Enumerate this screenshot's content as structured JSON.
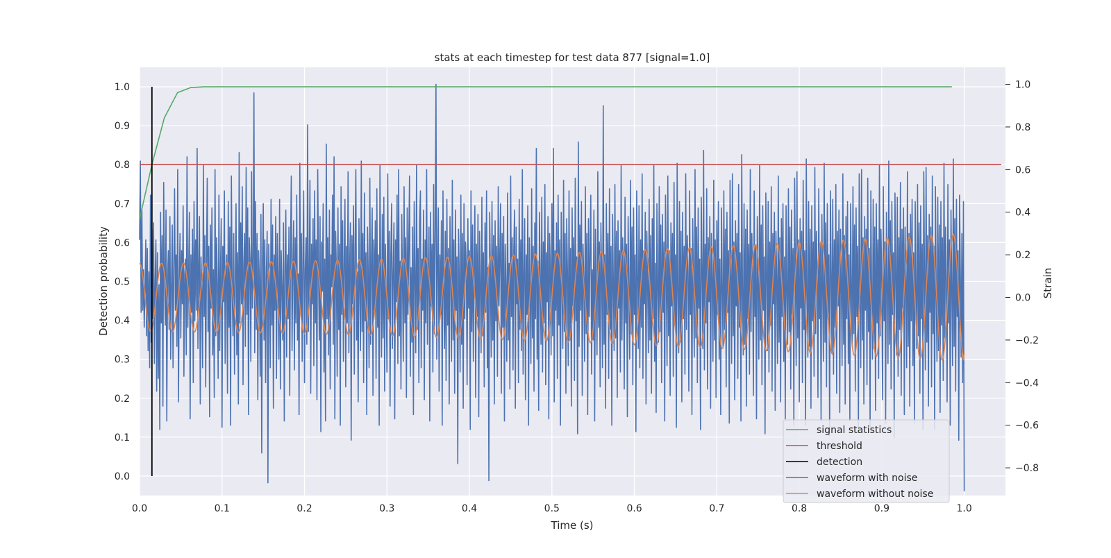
{
  "chart_data": {
    "type": "line",
    "title": "stats at each timestep for test data 877 [signal=1.0]",
    "xlabel": "Time (s)",
    "ylabel": "Detection probability",
    "y2label": "Strain",
    "xlim": [
      0.0,
      1.05
    ],
    "ylim": [
      -0.05,
      1.05
    ],
    "y2lim": [
      -0.93,
      1.08
    ],
    "xticks": [
      "0.0",
      "0.1",
      "0.2",
      "0.3",
      "0.4",
      "0.5",
      "0.6",
      "0.7",
      "0.8",
      "0.9",
      "1.0"
    ],
    "yticks": [
      "0.0",
      "0.1",
      "0.2",
      "0.3",
      "0.4",
      "0.5",
      "0.6",
      "0.7",
      "0.8",
      "0.9",
      "1.0"
    ],
    "y2ticks": [
      "−0.8",
      "−0.6",
      "−0.4",
      "−0.2",
      "0.0",
      "0.2",
      "0.4",
      "0.6",
      "0.8",
      "1.0"
    ],
    "grid": true,
    "legend_position": "lower-right",
    "legend": [
      "signal statistics",
      "threshold",
      "detection",
      "waveform with noise",
      "waveform without noise"
    ],
    "series": [
      {
        "name": "signal statistics",
        "axis": "left",
        "color": "#55a868",
        "x": [
          0.0,
          0.015,
          0.03,
          0.046,
          0.062,
          0.078,
          0.985
        ],
        "y": [
          0.66,
          0.8,
          0.92,
          0.985,
          0.998,
          1.0,
          1.0
        ]
      },
      {
        "name": "threshold",
        "axis": "left",
        "color": "#c44e52",
        "x": [
          0.0,
          1.045
        ],
        "y": [
          0.8,
          0.8
        ]
      },
      {
        "name": "detection",
        "axis": "left",
        "color": "#000000",
        "x": [
          0.015,
          0.015
        ],
        "y": [
          0.0,
          1.0
        ]
      },
      {
        "name": "waveform with noise",
        "axis": "right",
        "color": "#4c72b0",
        "x_start": 0.0,
        "x_end": 1.0,
        "y": [
          0.27,
          0.64,
          -0.07,
          0.41,
          -0.06,
          0.13,
          -0.14,
          0.03,
          0.27,
          -0.18,
          0.23,
          -0.25,
          0.12,
          -0.33,
          0.48,
          -0.21,
          0.32,
          -0.1,
          0.35,
          -0.31,
          0.08,
          0.27,
          -0.44,
          0.21,
          -0.38,
          0.06,
          -0.62,
          0.4,
          -0.12,
          0.29,
          -0.51,
          0.54,
          0.12,
          -0.13,
          0.41,
          -0.58,
          0.1,
          0.22,
          -0.15,
          0.38,
          -0.29,
          0.05,
          0.34,
          -0.33,
          0.13,
          0.51,
          -0.06,
          0.2,
          -0.23,
          0.6,
          -0.49,
          0.05,
          0.3,
          -0.19,
          0.22,
          -0.03,
          0.43,
          -0.37,
          0.11,
          0.18,
          -0.27,
          0.66,
          -0.14,
          0.09,
          0.4,
          -0.57,
          0.2,
          -0.07,
          0.32,
          -0.4,
          0.45,
          -0.11,
          0.27,
          -0.06,
          0.7,
          -0.24,
          0.14,
          0.38,
          -0.5,
          0.19,
          0.02,
          -0.33,
          0.62,
          -0.09,
          0.29,
          -0.42,
          0.18,
          0.56,
          -0.16,
          0.24,
          -0.56,
          0.34,
          -0.05,
          0.42,
          -0.27,
          0.13,
          -0.47,
          0.6,
          -0.18,
          0.28,
          0.06,
          -0.38,
          0.48,
          -0.25,
          0.12,
          0.37,
          -0.61,
          0.24,
          -0.02,
          0.5,
          -0.31,
          0.1,
          0.2,
          -0.45,
          0.45,
          -0.14,
          0.33,
          -0.6,
          0.57,
          0.05,
          -0.18,
          0.3,
          -0.36,
          0.08,
          0.44,
          -0.27,
          0.21,
          -0.5,
          0.68,
          -0.12,
          0.35,
          -0.03,
          0.52,
          -0.41,
          0.16,
          0.3,
          -0.23,
          0.61,
          -0.08,
          0.42,
          -0.55,
          0.28,
          0.17,
          -0.3,
          0.59,
          -0.05,
          0.12,
          0.96,
          -0.26,
          0.45,
          -0.15,
          0.3,
          -0.48,
          0.22,
          0.09,
          -0.37,
          0.39,
          -0.73,
          0.18,
          0.44,
          -0.2,
          0.27,
          -0.4,
          0.12,
          0.31,
          -0.87,
          0.25,
          0.05,
          -0.33,
          0.46,
          -0.13,
          0.34,
          -0.52,
          0.2,
          -0.06,
          0.38,
          -0.38,
          0.3,
          0.1,
          -0.29,
          0.46,
          -0.43,
          0.22,
          0.05,
          -0.2,
          0.35,
          -0.58,
          0.14,
          0.41,
          -0.28,
          0.2,
          -0.1,
          0.33,
          -0.46,
          0.22,
          0.57,
          -0.25,
          0.13,
          0.36,
          -0.34,
          0.28,
          -0.12,
          0.48,
          -0.2,
          0.11,
          -0.55,
          0.63,
          -0.08,
          0.3,
          -0.3,
          0.2,
          0.5,
          -0.4,
          0.14,
          0.28,
          -0.22,
          0.81,
          -0.16,
          0.09,
          0.55,
          -0.45,
          0.25,
          -0.03,
          0.37,
          -0.32,
          0.5,
          -0.12,
          0.27,
          -0.48,
          0.6,
          0.13,
          -0.2,
          0.38,
          -0.63,
          0.26,
          0.03,
          0.44,
          -0.35,
          0.18,
          -0.58,
          0.72,
          -0.1,
          0.28,
          -0.27,
          0.41,
          -0.43,
          0.2,
          0.05,
          0.48,
          -0.22,
          0.66,
          -0.57,
          0.31,
          0.12,
          -0.37,
          0.42,
          -0.15,
          0.25,
          -0.6,
          0.52,
          -0.08,
          0.36,
          -0.3,
          0.18,
          0.46,
          -0.42,
          0.24,
          -0.12,
          0.59,
          -0.26,
          0.15,
          0.35,
          -0.67,
          0.29,
          -0.03,
          0.43,
          -0.36,
          0.22,
          0.6,
          -0.2,
          0.12,
          -0.49,
          0.37,
          0.05,
          -0.25,
          0.64,
          -0.16,
          0.3,
          -0.4,
          0.49,
          -0.11,
          0.21,
          -0.55,
          0.33,
          0.1,
          -0.33,
          0.56,
          -0.22,
          0.16,
          0.42,
          -0.46,
          0.27,
          -0.06,
          0.36,
          -0.38,
          0.51,
          -0.14,
          0.2,
          -0.6,
          0.62,
          0.08,
          -0.28,
          0.39,
          -0.19,
          0.47,
          -0.44,
          0.25,
          0.02,
          -0.35,
          0.58,
          -0.1,
          0.31,
          -0.51,
          0.2,
          0.44,
          -0.24,
          0.12,
          0.35,
          -0.57,
          0.27,
          -0.02,
          0.48,
          -0.31,
          0.6,
          -0.18,
          0.17,
          -0.43,
          0.39,
          0.06,
          -0.3,
          0.52,
          -0.12,
          0.28,
          -0.47,
          0.42,
          -0.08,
          0.24,
          0.57,
          -0.37,
          0.14,
          -0.21,
          0.33,
          -0.55,
          0.45,
          0.1,
          -0.26,
          0.62,
          -0.15,
          0.23,
          -0.4,
          0.36,
          0.5,
          -0.33,
          0.18,
          -0.06,
          0.41,
          -0.48,
          0.27,
          -0.12,
          0.6,
          -0.22,
          0.09,
          0.33,
          -0.58,
          0.4,
          -0.04,
          0.25,
          -0.35,
          0.53,
          -0.17,
          0.3,
          1.0,
          -0.29,
          0.16,
          0.42,
          -0.44,
          0.2,
          -0.08,
          0.36,
          -0.6,
          0.5,
          0.03,
          -0.24,
          0.31,
          -0.39,
          0.46,
          -0.13,
          0.23,
          -0.5,
          0.38,
          0.12,
          -0.3,
          0.55,
          -0.2,
          0.27,
          -0.45,
          0.41,
          -0.06,
          0.19,
          -0.78,
          0.32,
          0.08,
          -0.35,
          0.48,
          -0.22,
          0.3,
          -0.52,
          0.44,
          -0.1,
          0.26,
          0.15,
          -0.41,
          0.37,
          -0.05,
          0.22,
          -0.62,
          0.5,
          -0.16,
          0.34,
          -0.3,
          0.18,
          0.43,
          -0.47,
          0.25,
          -0.09,
          0.39,
          -0.56,
          0.31,
          0.07,
          -0.26,
          0.47,
          -0.18,
          0.21,
          -0.42,
          0.35,
          -0.07,
          0.5,
          -0.33,
          0.14,
          -0.86,
          0.4,
          0.1,
          -0.28,
          0.45,
          -0.2,
          0.29,
          -0.5,
          0.36,
          -0.11,
          0.24,
          -0.37,
          0.52,
          -0.04,
          0.18,
          0.44,
          -0.45,
          0.3,
          -0.14,
          0.38,
          -0.58,
          0.25,
          0.05,
          -0.3,
          0.49,
          -0.2,
          0.16,
          -0.43,
          0.57,
          -0.09,
          0.28,
          -0.34,
          0.22,
          0.41,
          -0.52,
          0.33,
          -0.03,
          0.18,
          -0.4,
          0.46,
          -0.15,
          0.27,
          -0.25,
          0.6,
          -0.36,
          0.12,
          0.37,
          -0.48,
          0.2,
          -0.08,
          0.43,
          -0.6,
          0.28,
          0.05,
          -0.31,
          0.51,
          -0.19,
          0.24,
          -0.44,
          0.35,
          -0.1,
          0.7,
          -0.29,
          0.17,
          -0.53,
          0.4,
          0.09,
          -0.22,
          0.47,
          -0.35,
          0.26,
          -0.12,
          0.53,
          -0.41,
          0.21,
          -0.02,
          0.38,
          -0.57,
          0.3,
          0.14,
          -0.27,
          0.44,
          -0.18,
          0.7,
          -0.49,
          0.22,
          -0.06,
          0.35,
          -0.38,
          0.48,
          -0.13,
          0.27,
          -0.6,
          0.4,
          0.06,
          -0.24,
          0.55,
          -0.16,
          0.3,
          -0.45,
          0.37,
          0.12,
          -0.32,
          0.5,
          -0.2,
          0.23,
          -0.51,
          0.42,
          -0.04,
          0.28,
          -0.39,
          0.56,
          -0.11,
          0.19,
          -0.64,
          0.73,
          -0.23,
          0.34,
          -0.06,
          0.45,
          -0.46,
          0.25,
          0.08,
          -0.3,
          0.52,
          -0.17,
          0.3,
          -0.55,
          0.37,
          -0.09,
          0.21,
          0.48,
          -0.36,
          0.13,
          -0.2,
          0.41,
          -0.58,
          0.32,
          0.04,
          -0.27,
          0.59,
          -0.14,
          0.26,
          -0.42,
          0.35,
          0.1,
          -0.33,
          0.9,
          -0.22,
          0.2,
          -0.52,
          0.44,
          -0.08,
          0.3,
          -0.38,
          0.51,
          -0.15,
          0.24,
          -0.6,
          0.39,
          0.06,
          -0.25,
          0.53,
          -0.19,
          0.31,
          -0.47,
          0.36,
          -0.05,
          0.22,
          -0.35,
          0.62,
          -0.2,
          0.28,
          0.14,
          -0.43,
          0.47,
          -0.12,
          0.25,
          -0.56,
          0.38,
          0.03,
          -0.29,
          0.55,
          -0.17,
          0.33,
          -0.41,
          0.42,
          -0.08,
          0.2,
          -0.63,
          0.5,
          0.11,
          -0.24,
          0.43,
          -0.33,
          0.27,
          -0.14,
          0.58,
          -0.38,
          0.22,
          -0.03,
          0.4,
          -0.5,
          0.31,
          0.08,
          -0.26,
          0.46,
          -0.2,
          0.29,
          -0.45,
          0.37,
          -0.1,
          0.62,
          -0.3,
          0.16,
          -0.54,
          0.44,
          0.05,
          -0.21,
          0.52,
          -0.16,
          0.34,
          -0.4,
          0.39,
          -0.07,
          0.26,
          -0.58,
          0.48,
          0.1,
          -0.32,
          0.57,
          -0.18,
          0.22,
          -0.46,
          0.35,
          -0.04,
          0.3,
          -0.37,
          0.54,
          -0.13,
          0.2,
          -0.61,
          0.63,
          0.03,
          -0.26,
          0.45,
          -0.21,
          0.31,
          -0.49,
          0.4,
          -0.1,
          0.24,
          -0.36,
          0.58,
          -0.15,
          0.29,
          0.12,
          -0.44,
          0.5,
          -0.08,
          0.23,
          -0.55,
          0.37,
          0.06,
          -0.28,
          0.6,
          -0.19,
          0.33,
          -0.4,
          0.42,
          -0.05,
          0.18,
          -0.62,
          0.47,
          0.13,
          -0.24,
          0.69,
          -0.34,
          0.25,
          -0.12,
          0.51,
          -0.43,
          0.28,
          -0.02,
          0.38,
          -0.52,
          0.3,
          0.09,
          -0.3,
          0.55,
          -0.2,
          0.27,
          -0.47,
          0.36,
          -0.08,
          0.45,
          -0.29,
          0.18,
          -0.55,
          0.42,
          0.04,
          -0.23,
          0.5,
          -0.15,
          0.32,
          -0.42,
          0.4,
          -0.07,
          0.22,
          -0.59,
          0.55,
          0.1,
          -0.31,
          0.58,
          -0.18,
          0.26,
          -0.48,
          0.36,
          -0.04,
          0.3,
          -0.38,
          0.53,
          -0.14,
          0.21,
          -0.58,
          0.67,
          0.02,
          -0.27,
          0.44,
          -0.22,
          0.32,
          -0.51,
          0.41,
          -0.1,
          0.25,
          -0.36,
          0.6,
          -0.16,
          0.3,
          0.1,
          -0.46,
          0.5,
          -0.09,
          0.24,
          -0.57,
          0.38,
          0.05,
          -0.29,
          0.62,
          -0.2,
          0.34,
          -0.41,
          0.43,
          -0.06,
          0.19,
          -0.64,
          0.49,
          0.12,
          -0.25,
          0.45,
          -0.35,
          0.26,
          -0.13,
          0.52,
          -0.44,
          0.3,
          -0.03,
          0.4,
          -0.53,
          0.31,
          0.08,
          -0.31,
          0.57,
          -0.21,
          0.28,
          -0.49,
          0.37,
          -0.09,
          0.44,
          -0.3,
          0.19,
          -0.57,
          0.43,
          0.03,
          -0.22,
          0.51,
          -0.16,
          0.33,
          -0.43,
          0.41,
          -0.08,
          0.23,
          -0.6,
          0.56,
          0.1,
          -0.32,
          0.59,
          -0.19,
          0.27,
          -0.49,
          0.37,
          -0.05,
          0.31,
          -0.4,
          0.55,
          -0.15,
          0.22,
          -0.6,
          0.65,
          0.02,
          -0.28,
          0.45,
          -0.23,
          0.32,
          -0.52,
          0.43,
          -0.11,
          0.26,
          -0.37,
          0.61,
          -0.17,
          0.31,
          0.09,
          -0.47,
          0.51,
          -0.1,
          0.25,
          -0.58,
          0.39,
          0.05,
          -0.3,
          0.63,
          -0.21,
          0.35,
          -0.42,
          0.44,
          -0.07,
          0.2,
          -0.65,
          0.5,
          0.12,
          -0.26,
          0.46,
          -0.36,
          0.27,
          -0.14,
          0.53,
          -0.45,
          0.31,
          -0.04,
          0.41,
          -0.54,
          0.32,
          0.08,
          -0.32,
          0.58,
          -0.22,
          0.29,
          -0.5,
          0.38,
          -0.1,
          0.45,
          -0.31,
          0.2,
          -0.58,
          0.44,
          0.04,
          -0.23,
          0.52,
          -0.17,
          0.34,
          -0.44,
          0.42,
          -0.09,
          0.24,
          -0.61,
          0.58,
          0.1,
          -0.33,
          0.6,
          -0.2,
          0.28,
          -0.5,
          0.38,
          -0.06,
          0.32,
          -0.41,
          0.56,
          -0.16,
          0.23,
          -0.61,
          0.5,
          0.02,
          -0.29,
          0.46,
          -0.24,
          0.33,
          -0.53,
          0.44,
          -0.12,
          0.27,
          -0.38,
          0.62,
          -0.18,
          0.32,
          0.08,
          -0.48,
          0.52,
          -0.11,
          0.26,
          -0.59,
          0.4,
          0.05,
          -0.31,
          0.64,
          -0.22,
          0.36,
          -0.43,
          0.45,
          -0.08,
          0.21,
          -0.66,
          0.49,
          0.12,
          -0.27,
          0.47,
          -0.37,
          0.28,
          -0.15,
          0.54,
          -0.46,
          0.32,
          -0.05,
          0.42,
          -0.55,
          0.33,
          0.08,
          -0.33,
          0.59,
          -0.23,
          0.3,
          -0.51,
          0.39,
          -0.11,
          0.46,
          -0.32,
          0.21,
          -0.59,
          0.45,
          0.04,
          -0.24,
          0.53,
          -0.18,
          0.35,
          -0.45,
          0.43,
          -0.1,
          0.25,
          -0.62,
          0.59,
          0.1,
          -0.34,
          0.61,
          -0.21,
          0.29,
          -0.51,
          0.39,
          -0.07,
          0.33,
          -0.42,
          0.57,
          -0.17,
          0.24,
          -0.62,
          0.52,
          0.02,
          -0.3,
          0.47,
          -0.25,
          0.34,
          -0.54,
          0.45,
          -0.13,
          0.28,
          -0.39,
          0.63,
          -0.19,
          0.33,
          0.07,
          -0.49,
          0.53,
          -0.12,
          0.27,
          -0.6,
          0.41,
          0.04,
          -0.32,
          0.65,
          -0.23,
          0.37,
          -0.44,
          0.46,
          -0.09,
          0.22,
          -0.67,
          0.48,
          0.11,
          -0.28,
          0.3,
          -0.4,
          0.45,
          -0.91
        ]
      },
      {
        "name": "waveform without noise",
        "axis": "right",
        "color": "#dd8452",
        "x_start": 0.0,
        "x_end": 1.0,
        "cycles": 37.5,
        "amplitude_start": 0.16,
        "amplitude_end": 0.3,
        "phase_start": 0.0,
        "final_value": -0.26
      }
    ]
  }
}
